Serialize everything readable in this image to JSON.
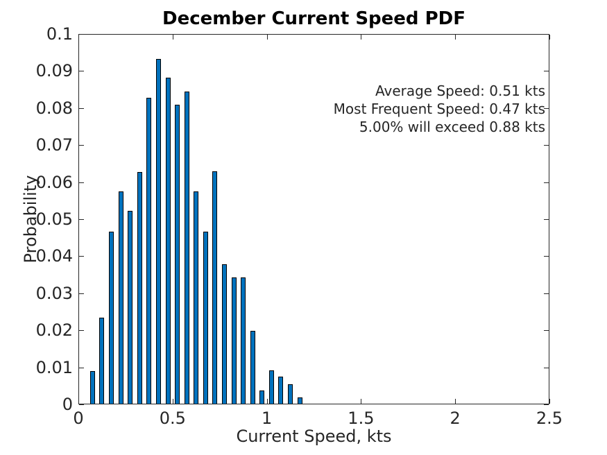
{
  "chart_data": {
    "type": "bar",
    "title": "December Current Speed PDF",
    "xlabel": "Current Speed, kts",
    "ylabel": "Probability",
    "xlim": [
      0,
      2.5
    ],
    "ylim": [
      0,
      0.1
    ],
    "xticks": [
      0,
      0.5,
      1,
      1.5,
      2,
      2.5
    ],
    "xtick_labels": [
      "0",
      "0.5",
      "1",
      "1.5",
      "2",
      "2.5"
    ],
    "yticks": [
      0,
      0.01,
      0.02,
      0.03,
      0.04,
      0.05,
      0.06,
      0.07,
      0.08,
      0.09,
      0.1
    ],
    "ytick_labels": [
      "0",
      "0.01",
      "0.02",
      "0.03",
      "0.04",
      "0.05",
      "0.06",
      "0.07",
      "0.08",
      "0.09",
      "0.1"
    ],
    "bin_width": 0.05,
    "x": [
      0.075,
      0.125,
      0.175,
      0.225,
      0.275,
      0.325,
      0.375,
      0.425,
      0.475,
      0.525,
      0.575,
      0.625,
      0.675,
      0.725,
      0.775,
      0.825,
      0.875,
      0.925,
      0.975,
      1.025,
      1.075,
      1.125,
      1.175
    ],
    "values": [
      0.009,
      0.0234,
      0.0467,
      0.0574,
      0.0522,
      0.0628,
      0.0828,
      0.0933,
      0.0882,
      0.0809,
      0.0845,
      0.0575,
      0.0467,
      0.063,
      0.0378,
      0.0342,
      0.0342,
      0.0198,
      0.0037,
      0.0091,
      0.0075,
      0.0054,
      0.0018
    ],
    "grid": false,
    "legend": null,
    "bar_color": "#0072BD",
    "bar_edge_color": "#000000",
    "axis_color": "#262626",
    "annotations": [
      "Average Speed: 0.51 kts",
      "Most Frequent Speed: 0.47 kts",
      "5.00% will exceed 0.88 kts"
    ]
  }
}
